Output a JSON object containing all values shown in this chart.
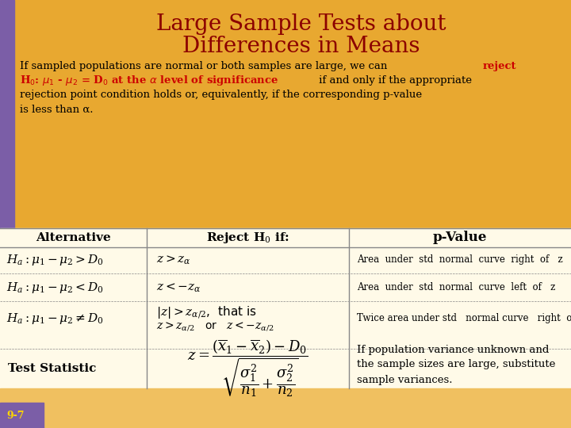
{
  "title_line1": "Large Sample Tests about",
  "title_line2": "Differences in Means",
  "title_color": "#800000",
  "bg_top_color": "#E8A830",
  "bg_top_light": "#F5D080",
  "bg_bottom_color": "#FFFAE8",
  "left_bar_color": "#7B5EA7",
  "grid_line_color": "#888888",
  "bottom_tab_color": "#7B5EA7",
  "bottom_text": "9-7",
  "col1_header": "Alternative",
  "col2_header": "Reject H$_0$ if:",
  "col3_header": "p-Value",
  "pval1": "Area  under  std  normal  curve  right  of   z",
  "pval2": "Area  under  std  normal  curve  left  of   z",
  "pval3": "Twice area under std   normal curve   right  of   |z|",
  "ts_label": "Test Statistic",
  "ts_note": "If population variance unknown and\nthe sample sizes are large, substitute\nsample variances.",
  "red_color": "#CC0000",
  "black_color": "#000000",
  "dark_red": "#8B0000"
}
